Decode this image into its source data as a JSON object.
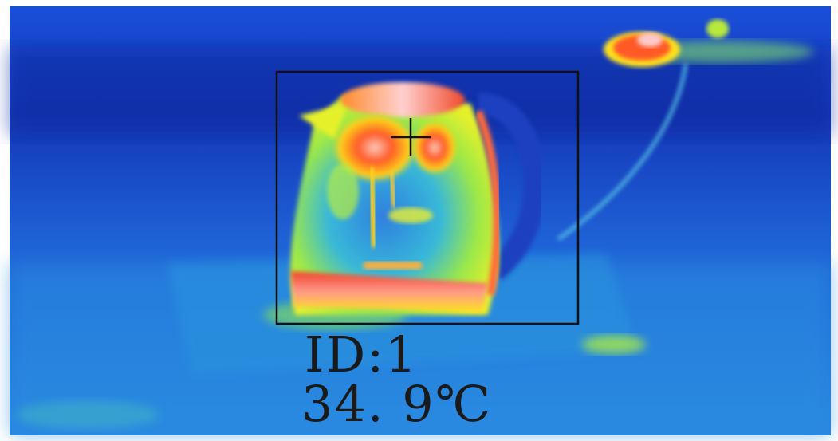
{
  "thermal_view": {
    "palette": [
      "#0b1a8c",
      "#1a3fd0",
      "#2b8fe0",
      "#2fd6c8",
      "#c8f020",
      "#ffe21a",
      "#ff7a1a",
      "#e8202a",
      "#ffc8c8"
    ],
    "subject_icon": "kettle-heat-signature",
    "target_box_color": "#111111",
    "crosshair_icon": "crosshair-icon"
  },
  "readout": {
    "id_label": "ID:1",
    "temperature": "34. 9℃"
  }
}
